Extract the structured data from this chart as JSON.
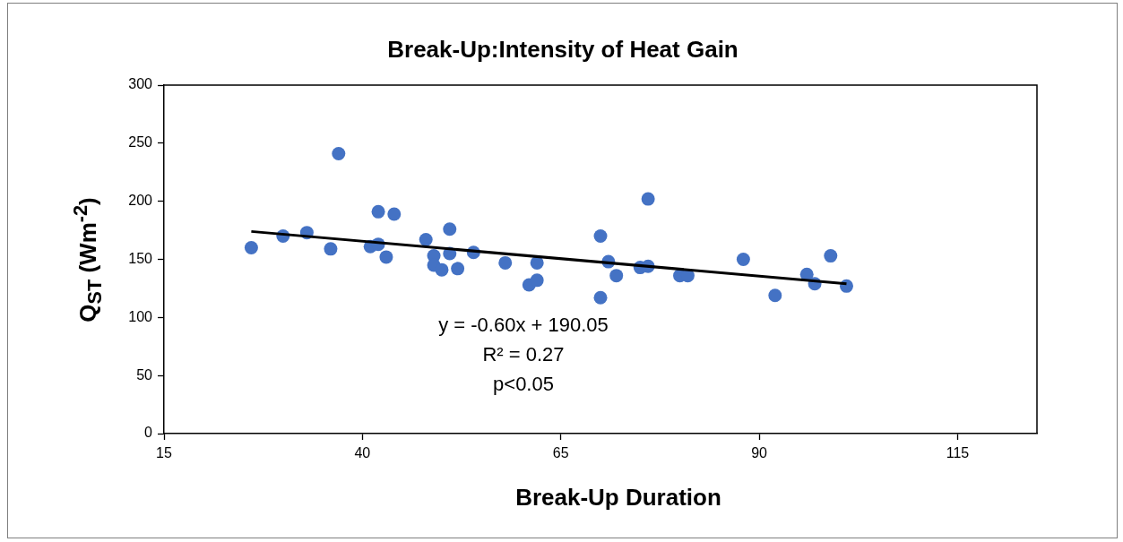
{
  "chart_data": {
    "type": "scatter",
    "title": "Break-Up:Intensity of Heat Gain",
    "xlabel": "Break-Up Duration",
    "ylabel": "Q$_{ST}$ (Wm$^{-2}$)",
    "annotations": [
      "y = -0.60x + 190.05",
      "R² = 0.27",
      "p<0.05"
    ],
    "series": [
      {
        "marker": "circle",
        "color": "#4472c4",
        "x": [
          26,
          30,
          33,
          36,
          37,
          41,
          42,
          42,
          43,
          44,
          48,
          49,
          49,
          50,
          51,
          51,
          52,
          54,
          58,
          61,
          62,
          62,
          70,
          70,
          71,
          72,
          75,
          76,
          76,
          80,
          81,
          88,
          92,
          96,
          97,
          99,
          101
        ],
        "values": [
          160,
          170,
          173,
          159,
          241,
          161,
          163,
          191,
          152,
          189,
          167,
          153,
          145,
          141,
          176,
          155,
          142,
          156,
          147,
          128,
          147,
          132,
          170,
          117,
          148,
          136,
          143,
          144,
          202,
          136,
          136,
          150,
          119,
          137,
          129,
          153,
          127
        ]
      },
      {
        "type": "line",
        "marker": "none",
        "color": "#000000",
        "x": [
          26,
          101
        ],
        "values": [
          174,
          129
        ]
      }
    ],
    "xlim": [
      15,
      125
    ],
    "xticks": [
      15,
      40,
      65,
      90,
      115
    ],
    "ylim": [
      0,
      300
    ],
    "yticks": [
      0,
      50,
      100,
      150,
      200,
      250,
      300
    ]
  }
}
